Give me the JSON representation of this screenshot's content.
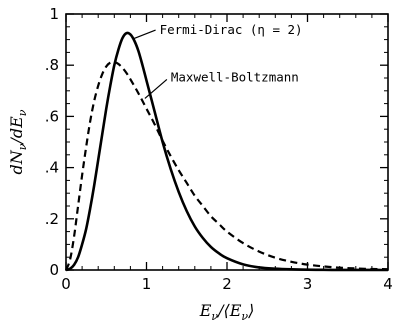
{
  "chart_data": {
    "type": "line",
    "xlabel": "E_ν/⟨E_ν⟩",
    "ylabel": "dN_ν/dE_ν",
    "xlim": [
      0,
      4
    ],
    "ylim": [
      0,
      1
    ],
    "grid": false,
    "x_ticks": [
      0,
      1,
      2,
      3,
      4
    ],
    "x_tick_labels": [
      "0",
      "1",
      "2",
      "3",
      "4"
    ],
    "y_ticks": [
      0,
      0.2,
      0.4,
      0.6,
      0.8,
      1.0
    ],
    "y_tick_labels": [
      "0",
      ".2",
      ".4",
      ".6",
      ".8",
      "1"
    ],
    "series": [
      {
        "name": "Fermi–Dirac (η = 2)",
        "style": "solid",
        "x": [
          0.0,
          0.05,
          0.1,
          0.15,
          0.2,
          0.25,
          0.3,
          0.35,
          0.4,
          0.45,
          0.5,
          0.55,
          0.6,
          0.65,
          0.7,
          0.75,
          0.8,
          0.85,
          0.9,
          0.95,
          1.0,
          1.1,
          1.2,
          1.3,
          1.4,
          1.5,
          1.6,
          1.7,
          1.8,
          1.9,
          2.0,
          2.2,
          2.4,
          2.6,
          2.8,
          3.0,
          3.2,
          3.4,
          3.6,
          3.8,
          4.0
        ],
        "y": [
          0.0,
          0.005,
          0.02,
          0.05,
          0.1,
          0.16,
          0.24,
          0.33,
          0.43,
          0.53,
          0.63,
          0.72,
          0.8,
          0.86,
          0.905,
          0.925,
          0.92,
          0.895,
          0.855,
          0.8,
          0.74,
          0.62,
          0.5,
          0.395,
          0.305,
          0.23,
          0.17,
          0.125,
          0.09,
          0.065,
          0.046,
          0.022,
          0.01,
          0.005,
          0.0025,
          0.0012,
          0.0006,
          0.0003,
          0.00015,
          0.0001,
          0.0
        ],
        "annotation": {
          "text": "Fermi-Dirac (η = 2)",
          "x": 0.79,
          "y": 0.91
        }
      },
      {
        "name": "Maxwell–Boltzmann",
        "style": "dashed",
        "x": [
          0.0,
          0.05,
          0.1,
          0.15,
          0.2,
          0.25,
          0.3,
          0.35,
          0.4,
          0.45,
          0.5,
          0.55,
          0.6,
          0.65,
          0.7,
          0.75,
          0.8,
          0.9,
          1.0,
          1.1,
          1.2,
          1.3,
          1.4,
          1.5,
          1.6,
          1.7,
          1.8,
          1.9,
          2.0,
          2.2,
          2.4,
          2.6,
          2.8,
          3.0,
          3.2,
          3.4,
          3.6,
          3.8,
          4.0
        ],
        "y": [
          0.0,
          0.04,
          0.13,
          0.25,
          0.37,
          0.48,
          0.58,
          0.66,
          0.72,
          0.765,
          0.795,
          0.81,
          0.812,
          0.805,
          0.79,
          0.77,
          0.745,
          0.69,
          0.63,
          0.57,
          0.505,
          0.445,
          0.39,
          0.34,
          0.29,
          0.25,
          0.21,
          0.18,
          0.15,
          0.105,
          0.072,
          0.048,
          0.032,
          0.021,
          0.014,
          0.009,
          0.006,
          0.004,
          0.003
        ],
        "annotation": {
          "text": "Maxwell-Boltzmann",
          "x": 0.98,
          "y": 0.67
        }
      }
    ]
  }
}
